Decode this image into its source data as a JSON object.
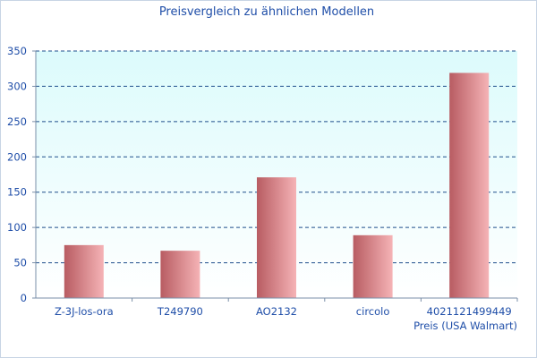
{
  "chart_data": {
    "type": "bar",
    "title": "Preisvergleich zu ähnlichen Modellen",
    "xlabel": "Preis (USA Walmart)",
    "ylabel": "",
    "categories": [
      "Z-3J-los-ora",
      "T249790",
      "AO2132",
      "circolo",
      "4021121499449"
    ],
    "values": [
      75,
      67,
      171,
      89,
      319
    ],
    "ylim": [
      0,
      350
    ],
    "yticks": [
      0,
      50,
      100,
      150,
      200,
      250,
      300,
      350
    ],
    "grid": true,
    "legend": "none"
  },
  "colors": {
    "title": "#1f4ea8",
    "axis_text": "#1f4ea8",
    "plot_bg_top": "#dcfbfc",
    "plot_bg_bottom": "#ffffff",
    "grid": "#1f4e8c",
    "axis": "#7a8fa8",
    "bar_dark": "#b85c62",
    "bar_light": "#f5b3b6"
  }
}
